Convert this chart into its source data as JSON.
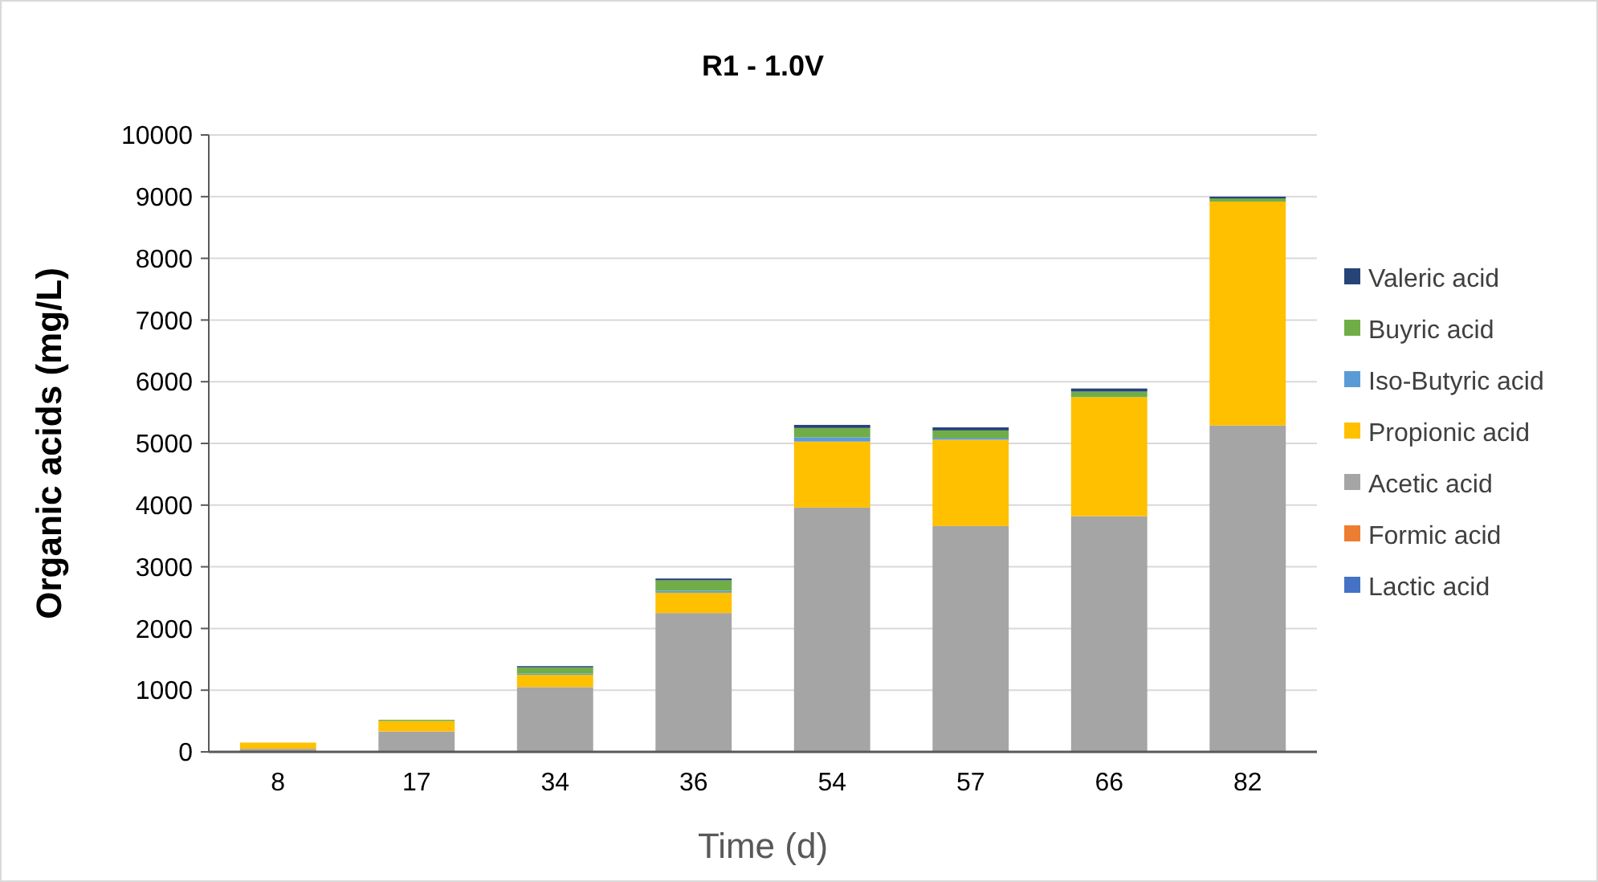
{
  "chart_data": {
    "type": "bar",
    "title": "R1 - 1.0V",
    "xlabel": "Time (d)",
    "ylabel": "Organic acids (mg/L)",
    "categories": [
      "8",
      "17",
      "34",
      "36",
      "54",
      "57",
      "66",
      "82"
    ],
    "stacked": true,
    "series": [
      {
        "name": "Lactic acid",
        "color": "#4472c4",
        "values": [
          0,
          0,
          0,
          0,
          0,
          0,
          0,
          0
        ]
      },
      {
        "name": "Formic acid",
        "color": "#ed7d31",
        "values": [
          0,
          0,
          0,
          0,
          0,
          0,
          0,
          0
        ]
      },
      {
        "name": "Acetic acid",
        "color": "#a5a5a5",
        "values": [
          50,
          330,
          1050,
          2250,
          3960,
          3660,
          3820,
          5290
        ]
      },
      {
        "name": "Propionic acid",
        "color": "#ffc000",
        "values": [
          100,
          170,
          200,
          330,
          1070,
          1400,
          1930,
          3630
        ]
      },
      {
        "name": "Iso-Butyric acid",
        "color": "#5b9bd5",
        "values": [
          0,
          0,
          20,
          30,
          70,
          30,
          0,
          0
        ]
      },
      {
        "name": "Buyric acid",
        "color": "#70ad47",
        "values": [
          0,
          20,
          100,
          170,
          150,
          120,
          90,
          50
        ]
      },
      {
        "name": "Valeric acid",
        "color": "#264478",
        "values": [
          0,
          0,
          20,
          30,
          50,
          50,
          50,
          30
        ]
      }
    ],
    "ylim": [
      0,
      10000
    ],
    "yticks": [
      0,
      1000,
      2000,
      3000,
      4000,
      5000,
      6000,
      7000,
      8000,
      9000,
      10000
    ],
    "grid": "y",
    "legend": "right"
  }
}
